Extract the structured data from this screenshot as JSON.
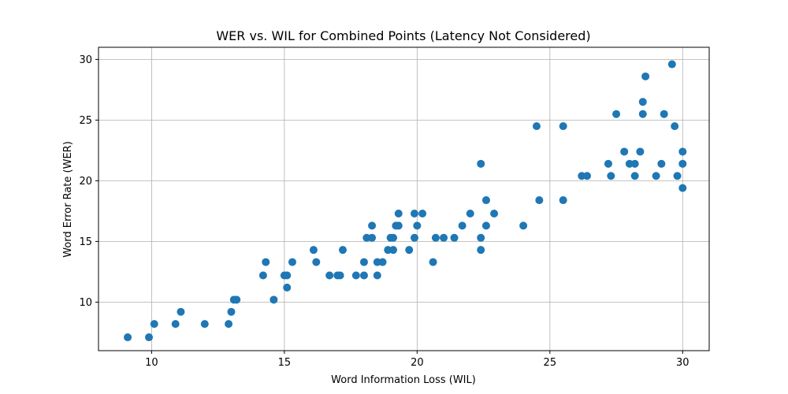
{
  "chart_data": {
    "type": "scatter",
    "title": "WER vs. WIL for Combined Points (Latency Not Considered)",
    "xlabel": "Word Information Loss (WIL)",
    "ylabel": "Word Error Rate (WER)",
    "xlim": [
      8.0,
      31.0
    ],
    "ylim": [
      6.0,
      31.0
    ],
    "xticks": [
      10,
      15,
      20,
      25,
      30
    ],
    "yticks": [
      10,
      15,
      20,
      25,
      30
    ],
    "grid": true,
    "marker_color": "#1f77b4",
    "points": [
      [
        9.1,
        7.1
      ],
      [
        9.9,
        7.1
      ],
      [
        10.1,
        8.2
      ],
      [
        10.9,
        8.2
      ],
      [
        11.1,
        9.2
      ],
      [
        12.0,
        8.2
      ],
      [
        12.9,
        8.2
      ],
      [
        13.0,
        9.2
      ],
      [
        13.1,
        10.2
      ],
      [
        13.2,
        10.2
      ],
      [
        14.2,
        12.2
      ],
      [
        14.3,
        13.3
      ],
      [
        14.6,
        10.2
      ],
      [
        15.0,
        12.2
      ],
      [
        15.1,
        12.2
      ],
      [
        15.1,
        11.2
      ],
      [
        15.3,
        13.3
      ],
      [
        16.1,
        14.3
      ],
      [
        16.2,
        13.3
      ],
      [
        16.7,
        12.2
      ],
      [
        17.0,
        12.2
      ],
      [
        17.1,
        12.2
      ],
      [
        17.2,
        14.3
      ],
      [
        17.7,
        12.2
      ],
      [
        18.0,
        12.2
      ],
      [
        18.0,
        13.3
      ],
      [
        18.1,
        15.3
      ],
      [
        18.3,
        15.3
      ],
      [
        18.3,
        16.3
      ],
      [
        18.5,
        12.2
      ],
      [
        18.5,
        13.3
      ],
      [
        18.7,
        13.3
      ],
      [
        18.9,
        14.3
      ],
      [
        19.0,
        15.3
      ],
      [
        19.1,
        14.3
      ],
      [
        19.1,
        15.3
      ],
      [
        19.2,
        16.3
      ],
      [
        19.3,
        16.3
      ],
      [
        19.3,
        17.3
      ],
      [
        19.7,
        14.3
      ],
      [
        19.9,
        15.3
      ],
      [
        19.9,
        17.3
      ],
      [
        20.0,
        16.3
      ],
      [
        20.2,
        17.3
      ],
      [
        20.6,
        13.3
      ],
      [
        20.7,
        15.3
      ],
      [
        21.0,
        15.3
      ],
      [
        21.4,
        15.3
      ],
      [
        21.7,
        16.3
      ],
      [
        22.0,
        17.3
      ],
      [
        22.4,
        14.3
      ],
      [
        22.4,
        15.3
      ],
      [
        22.4,
        21.4
      ],
      [
        22.6,
        16.3
      ],
      [
        22.6,
        18.4
      ],
      [
        22.9,
        17.3
      ],
      [
        24.0,
        16.3
      ],
      [
        24.5,
        24.5
      ],
      [
        24.6,
        18.4
      ],
      [
        25.5,
        18.4
      ],
      [
        25.5,
        24.5
      ],
      [
        26.2,
        20.4
      ],
      [
        26.4,
        20.4
      ],
      [
        27.2,
        21.4
      ],
      [
        27.3,
        20.4
      ],
      [
        27.5,
        25.5
      ],
      [
        27.8,
        22.4
      ],
      [
        28.0,
        21.4
      ],
      [
        28.2,
        21.4
      ],
      [
        28.2,
        20.4
      ],
      [
        28.4,
        22.4
      ],
      [
        28.5,
        25.5
      ],
      [
        28.5,
        26.5
      ],
      [
        28.6,
        28.6
      ],
      [
        29.0,
        20.4
      ],
      [
        29.2,
        21.4
      ],
      [
        29.3,
        25.5
      ],
      [
        29.6,
        29.6
      ],
      [
        29.7,
        24.5
      ],
      [
        29.8,
        20.4
      ],
      [
        30.0,
        22.4
      ],
      [
        30.0,
        21.4
      ],
      [
        30.0,
        19.4
      ]
    ]
  }
}
